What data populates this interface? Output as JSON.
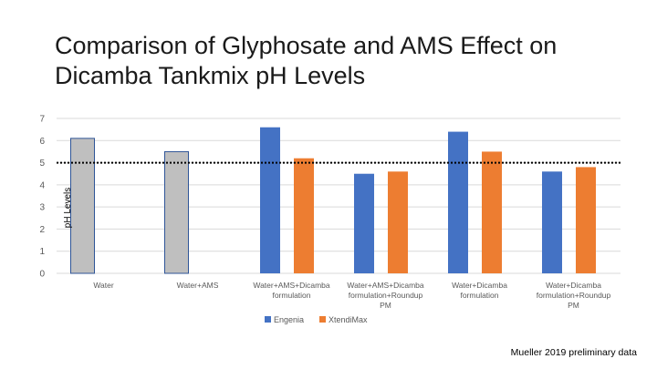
{
  "slide": {
    "title": "Comparison of Glyphosate and AMS Effect on Dicamba Tankmix pH Levels",
    "footnote": "Mueller 2019 preliminary data"
  },
  "colors": {
    "engenia": "#4472C4",
    "xtendimax": "#ED7D31",
    "single": "#BFBFBF",
    "single_border": "#2F5597",
    "grid": "#D9D9D9",
    "reference_line": "#000000",
    "axis_text": "#595959"
  },
  "chart_data": {
    "type": "bar",
    "ylabel": "pH Levels",
    "ylim": [
      0,
      7
    ],
    "yticks": [
      0,
      1,
      2,
      3,
      4,
      5,
      6,
      7
    ],
    "grid": true,
    "legend_position": "bottom",
    "reference_line": {
      "y": 5,
      "style": "dotted"
    },
    "categories": [
      [
        "Water"
      ],
      [
        "Water+AMS"
      ],
      [
        "Water+AMS+Dicamba",
        "formulation"
      ],
      [
        "Water+AMS+Dicamba",
        "formulation+Roundup",
        "PM"
      ],
      [
        "Water+Dicamba",
        "formulation"
      ],
      [
        "Water+Dicamba",
        "formulation+Roundup",
        "PM"
      ]
    ],
    "single_values": [
      6.1,
      5.5,
      null,
      null,
      null,
      null
    ],
    "series": [
      {
        "name": "Engenia",
        "values": [
          null,
          null,
          6.6,
          4.5,
          6.4,
          4.6
        ]
      },
      {
        "name": "XtendiMax",
        "values": [
          null,
          null,
          5.2,
          4.6,
          5.5,
          4.8
        ]
      }
    ]
  }
}
